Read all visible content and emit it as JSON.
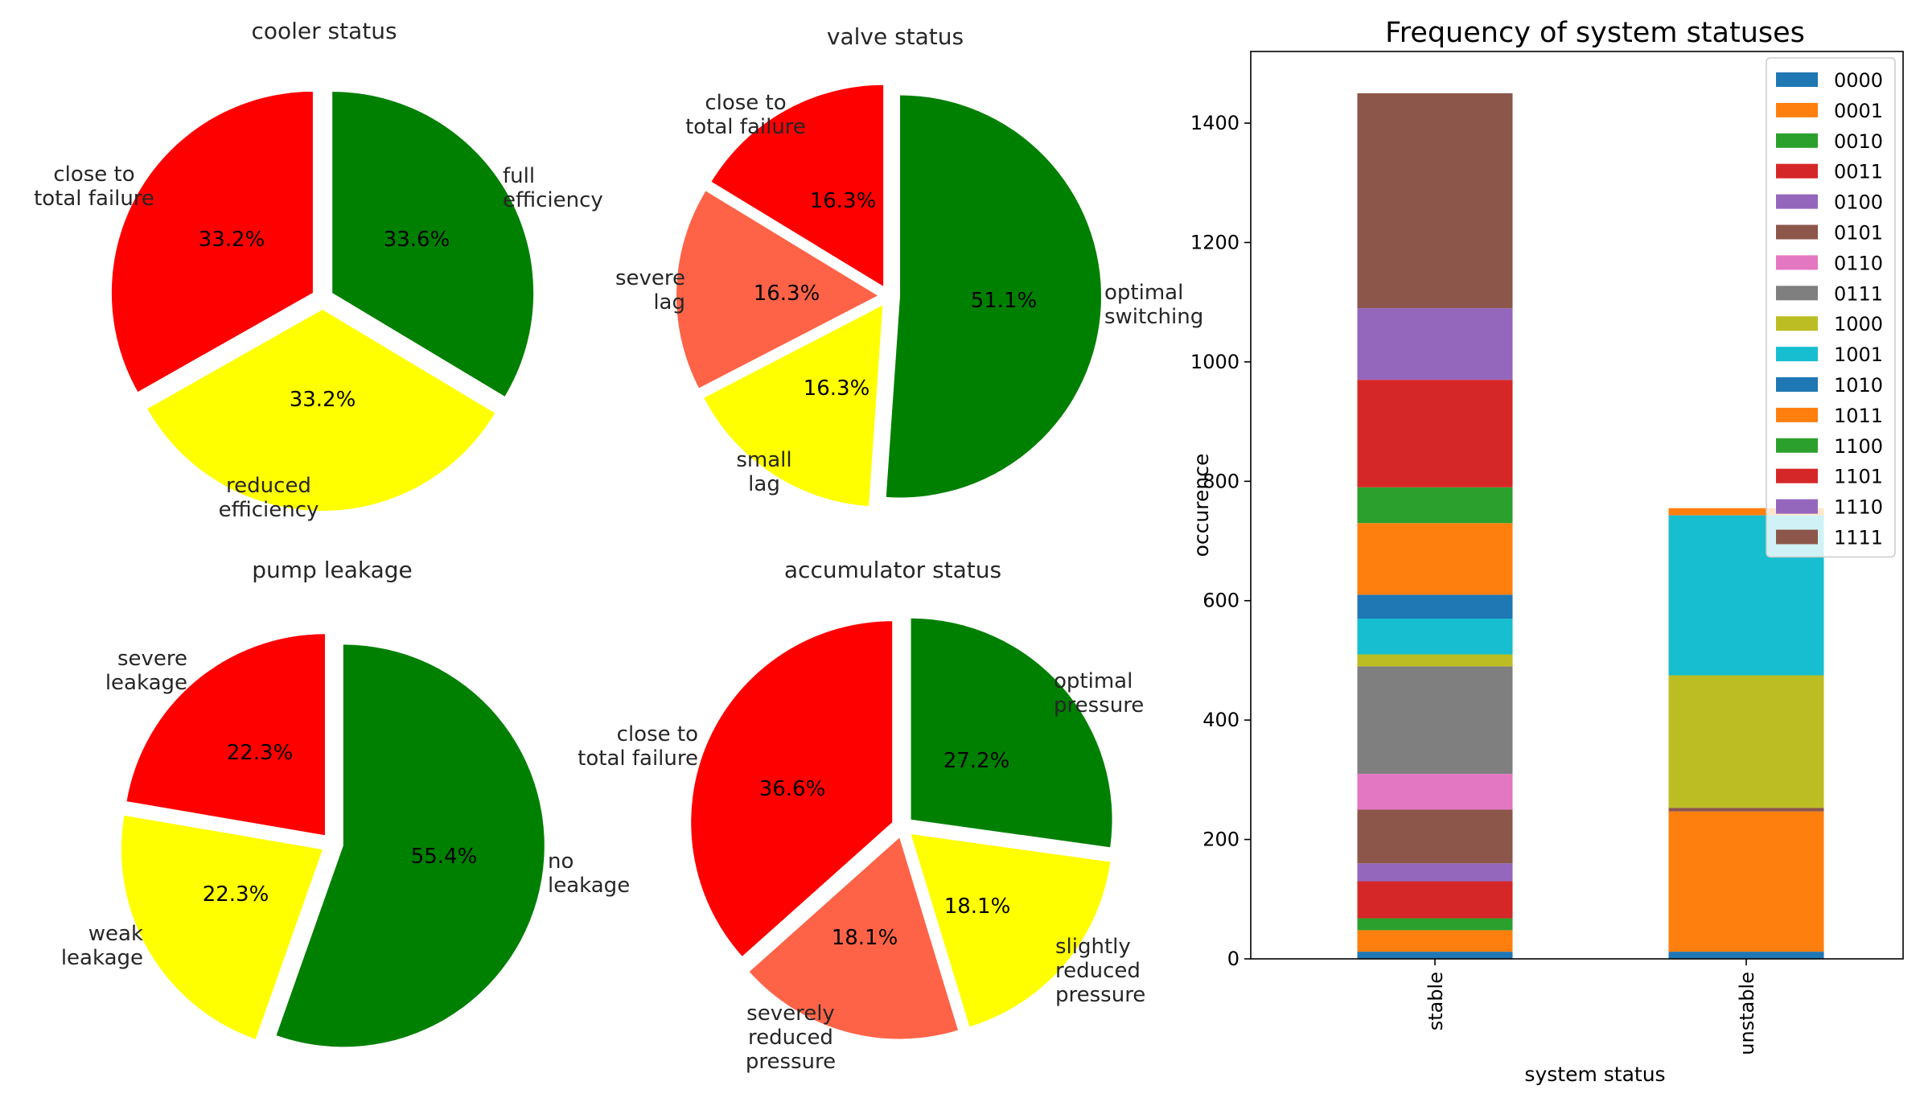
{
  "chart_data": [
    {
      "type": "pie",
      "title": "cooler status",
      "slices": [
        {
          "label": "full\nefficiency",
          "value": 33.6,
          "pct_label": "33.6%",
          "color": "#008000"
        },
        {
          "label": "reduced\nefficiency",
          "value": 33.2,
          "pct_label": "33.2%",
          "color": "#ffff00"
        },
        {
          "label": "close to\ntotal failure",
          "value": 33.2,
          "pct_label": "33.2%",
          "color": "#ff0000"
        }
      ]
    },
    {
      "type": "pie",
      "title": "valve status",
      "slices": [
        {
          "label": "optimal\nswitching",
          "value": 51.1,
          "pct_label": "51.1%",
          "color": "#008000"
        },
        {
          "label": "small\nlag",
          "value": 16.3,
          "pct_label": "16.3%",
          "color": "#ffff00"
        },
        {
          "label": "severe\nlag",
          "value": 16.3,
          "pct_label": "16.3%",
          "color": "#ff6347"
        },
        {
          "label": "close to\ntotal failure",
          "value": 16.3,
          "pct_label": "16.3%",
          "color": "#ff0000"
        }
      ]
    },
    {
      "type": "pie",
      "title": "pump leakage",
      "slices": [
        {
          "label": "no\nleakage",
          "value": 55.4,
          "pct_label": "55.4%",
          "color": "#008000"
        },
        {
          "label": "weak\nleakage",
          "value": 22.3,
          "pct_label": "22.3%",
          "color": "#ffff00"
        },
        {
          "label": "severe\nleakage",
          "value": 22.3,
          "pct_label": "22.3%",
          "color": "#ff0000"
        }
      ]
    },
    {
      "type": "pie",
      "title": "accumulator status",
      "slices": [
        {
          "label": "optimal\npressure",
          "value": 27.2,
          "pct_label": "27.2%",
          "color": "#008000"
        },
        {
          "label": "slightly\nreduced\npressure",
          "value": 18.1,
          "pct_label": "18.1%",
          "color": "#ffff00"
        },
        {
          "label": "severely\nreduced\npressure",
          "value": 18.1,
          "pct_label": "18.1%",
          "color": "#ff6347"
        },
        {
          "label": "close to\ntotal failure",
          "value": 36.6,
          "pct_label": "36.6%",
          "color": "#ff0000"
        }
      ]
    },
    {
      "type": "bar",
      "stacked": true,
      "title": "Frequency of system statuses",
      "xlabel": "system status",
      "ylabel": "occurence",
      "categories": [
        "stable",
        "unstable"
      ],
      "ylim": [
        0,
        1520
      ],
      "yticks": [
        0,
        200,
        400,
        600,
        800,
        1000,
        1200,
        1400
      ],
      "legend_position": "top-right",
      "series": [
        {
          "name": "0000",
          "color": "#1f77b4",
          "values": [
            12,
            12
          ]
        },
        {
          "name": "0001",
          "color": "#ff7f0e",
          "values": [
            36,
            235
          ]
        },
        {
          "name": "0010",
          "color": "#2ca02c",
          "values": [
            20,
            0
          ]
        },
        {
          "name": "0011",
          "color": "#d62728",
          "values": [
            62,
            0
          ]
        },
        {
          "name": "0100",
          "color": "#9467bd",
          "values": [
            30,
            0
          ]
        },
        {
          "name": "0101",
          "color": "#8c564b",
          "values": [
            90,
            6
          ]
        },
        {
          "name": "0110",
          "color": "#e377c2",
          "values": [
            60,
            0
          ]
        },
        {
          "name": "0111",
          "color": "#7f7f7f",
          "values": [
            180,
            0
          ]
        },
        {
          "name": "1000",
          "color": "#bcbd22",
          "values": [
            20,
            222
          ]
        },
        {
          "name": "1001",
          "color": "#17becf",
          "values": [
            60,
            268
          ]
        },
        {
          "name": "1010",
          "color": "#1f77b4",
          "values": [
            40,
            0
          ]
        },
        {
          "name": "1011",
          "color": "#ff7f0e",
          "values": [
            120,
            12
          ]
        },
        {
          "name": "1100",
          "color": "#2ca02c",
          "values": [
            60,
            0
          ]
        },
        {
          "name": "1101",
          "color": "#d62728",
          "values": [
            180,
            0
          ]
        },
        {
          "name": "1110",
          "color": "#9467bd",
          "values": [
            120,
            0
          ]
        },
        {
          "name": "1111",
          "color": "#8c564b",
          "values": [
            360,
            0
          ]
        }
      ]
    }
  ]
}
